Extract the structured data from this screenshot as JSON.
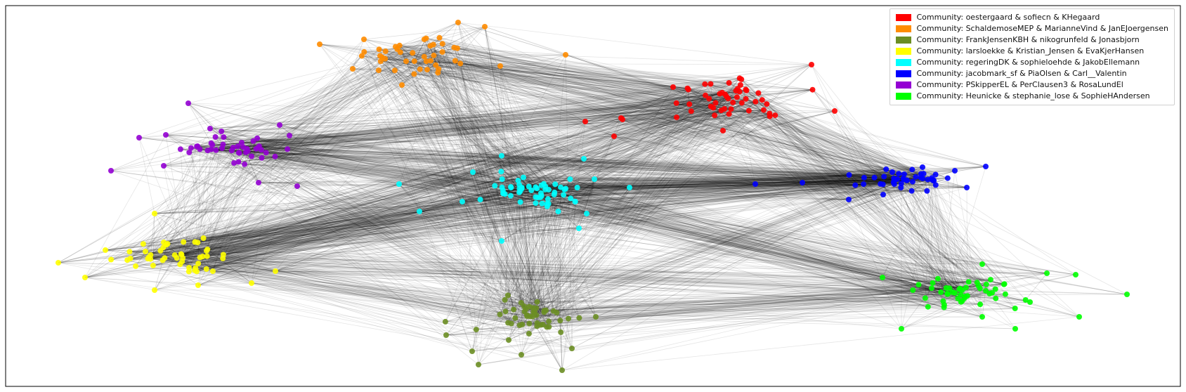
{
  "chart_data": {
    "type": "network",
    "title": "",
    "legend_position": "top-right",
    "communities": [
      {
        "name": "Community: oestergaard & sofiecn & KHegaard",
        "color": "#ff0000"
      },
      {
        "name": "Community: SchaldemoseMEP & MarianneVind & JanEJoergensen",
        "color": "#ff8c00"
      },
      {
        "name": "Community: FrankJensenKBH & nikogrunfeld & Jonasbjorn",
        "color": "#6b8e23"
      },
      {
        "name": "Community: larsloekke & Kristian_Jensen & EvaKjerHansen",
        "color": "#ffff00"
      },
      {
        "name": "Community: regeringDK & sophieloehde & JakobEllemann",
        "color": "#00ffff"
      },
      {
        "name": "Community: jacobmark_sf & PiaOlsen & Carl__Valentin",
        "color": "#0000ff"
      },
      {
        "name": "Community: PSkipperEL & PerClausen3 & RosaLundEl",
        "color": "#9400d3"
      },
      {
        "name": "Community: Heunicke & stephanie_lose & SophieHAndersen",
        "color": "#00ff00"
      }
    ]
  }
}
